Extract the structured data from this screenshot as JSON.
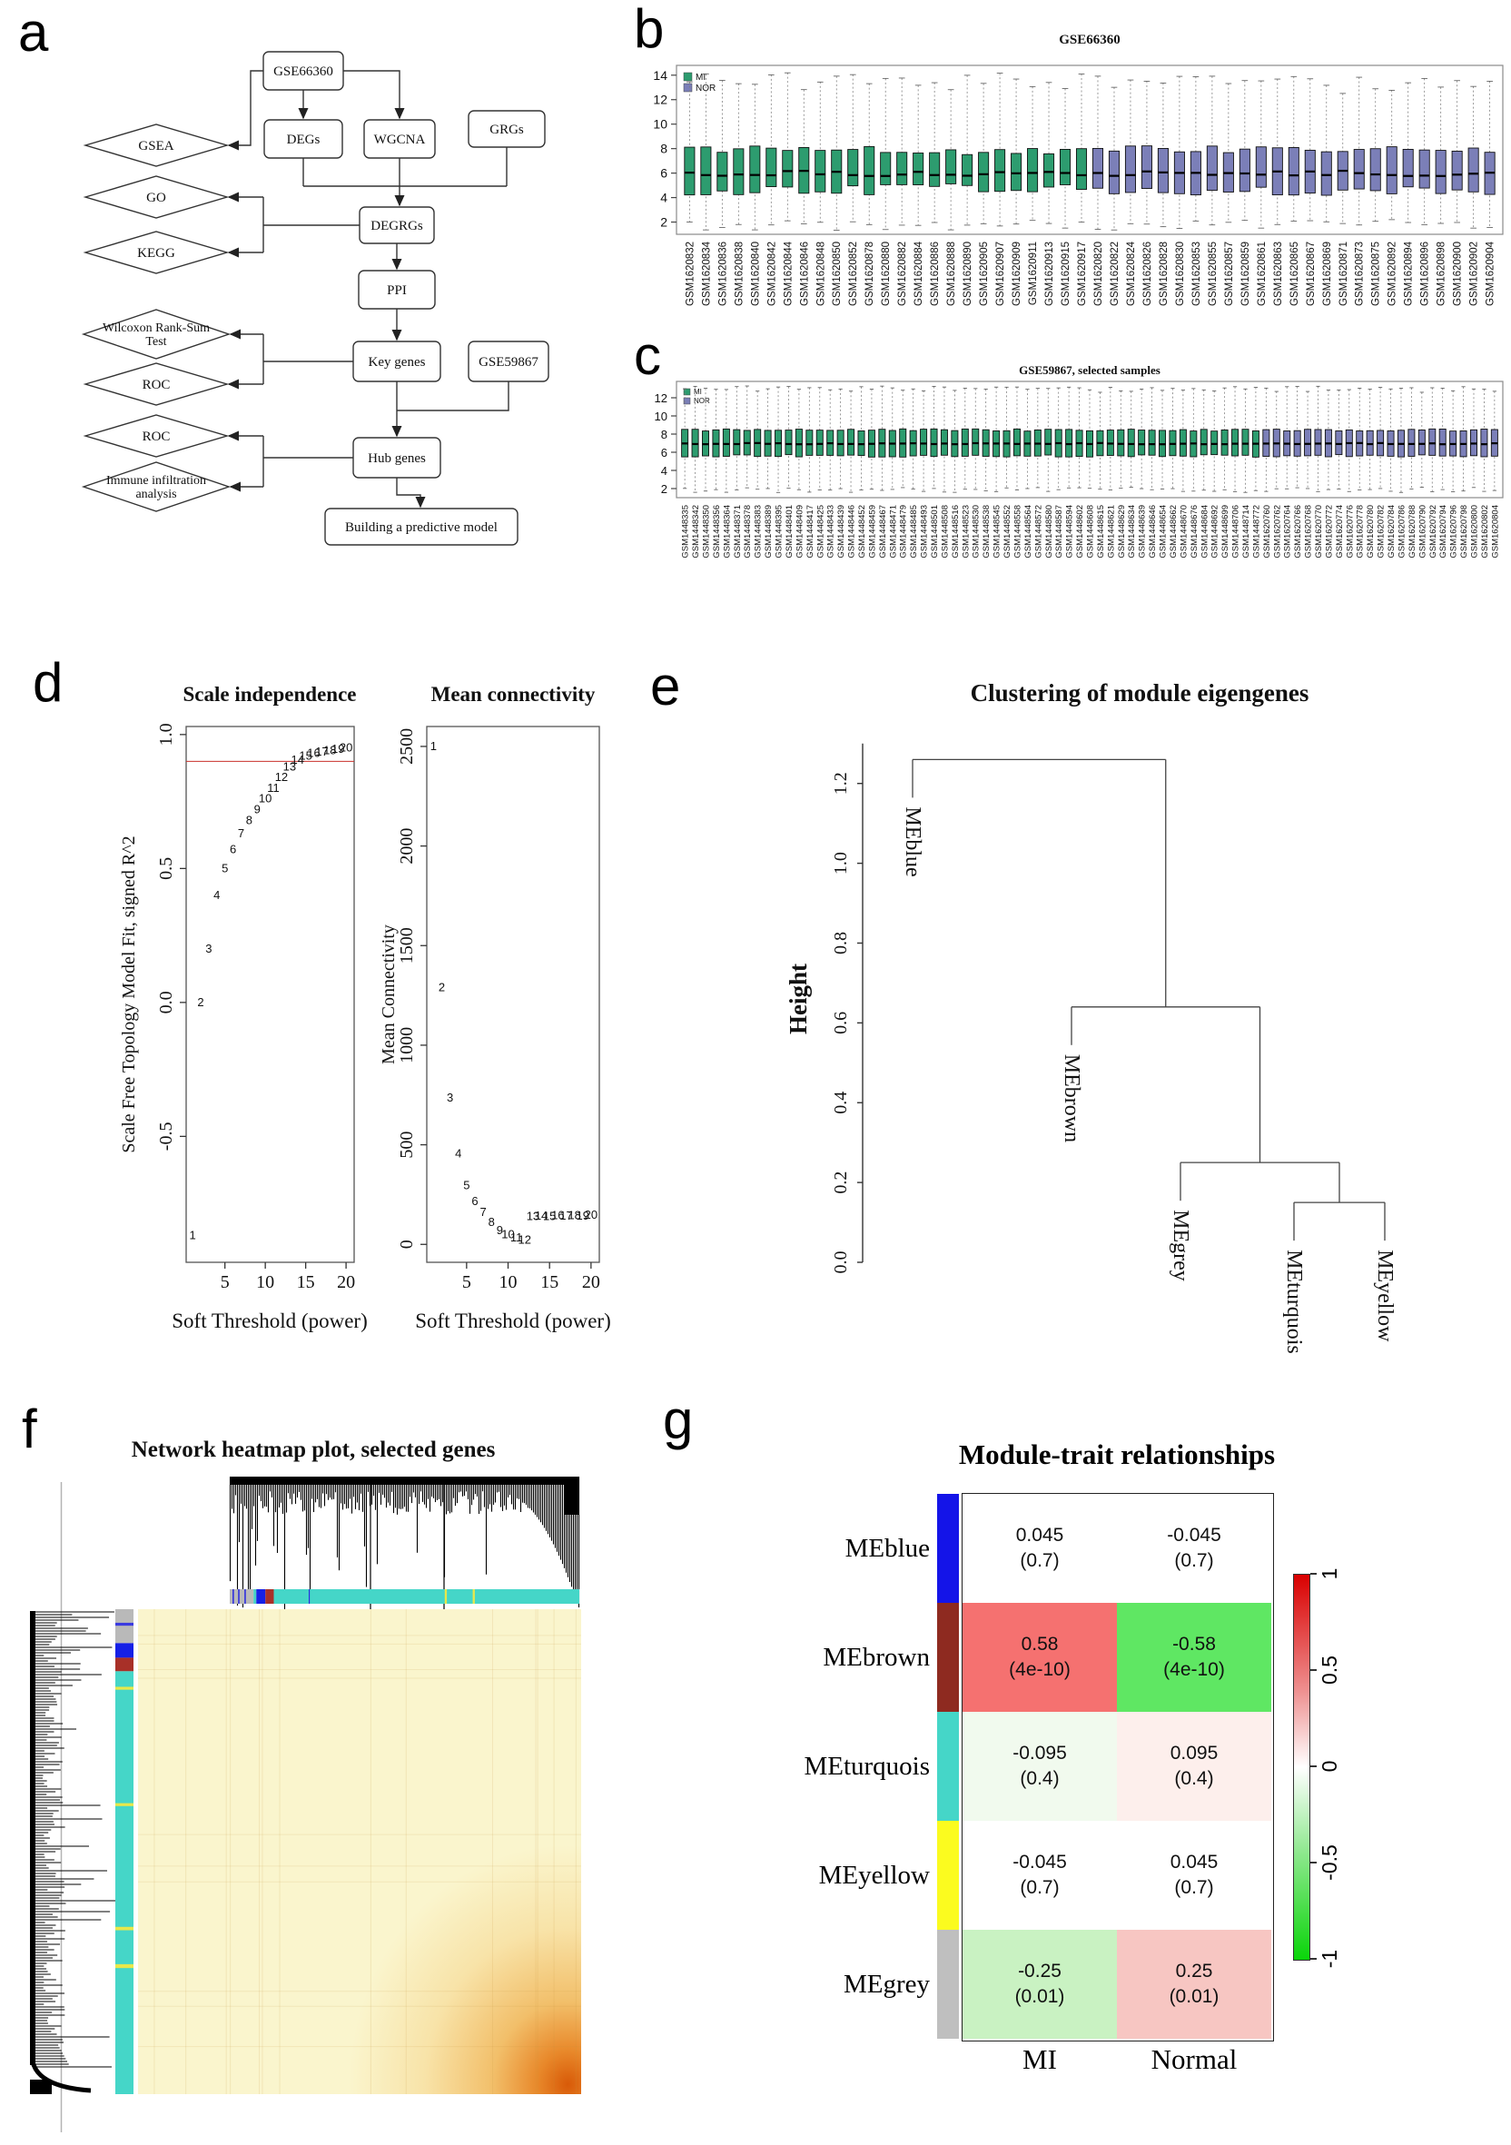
{
  "panel_labels": {
    "a": "a",
    "b": "b",
    "c": "c",
    "d": "d",
    "e": "e",
    "f": "f",
    "g": "g"
  },
  "flowchart": {
    "nodes": [
      {
        "id": "gse66360",
        "shape": "rect",
        "label": "GSE66360"
      },
      {
        "id": "degs",
        "shape": "rect",
        "label": "DEGs"
      },
      {
        "id": "wgcna",
        "shape": "rect",
        "label": "WGCNA"
      },
      {
        "id": "grgs",
        "shape": "rect",
        "label": "GRGs"
      },
      {
        "id": "degrgs",
        "shape": "rect",
        "label": "DEGRGs"
      },
      {
        "id": "ppi",
        "shape": "rect",
        "label": "PPI"
      },
      {
        "id": "keygenes",
        "shape": "rect",
        "label": "Key genes"
      },
      {
        "id": "gse59867",
        "shape": "rect",
        "label": "GSE59867"
      },
      {
        "id": "hubgenes",
        "shape": "rect",
        "label": "Hub genes"
      },
      {
        "id": "model",
        "shape": "rect",
        "label": "Building a predictive model"
      },
      {
        "id": "gsea",
        "shape": "diamond",
        "label": "GSEA"
      },
      {
        "id": "go",
        "shape": "diamond",
        "label": "GO"
      },
      {
        "id": "kegg",
        "shape": "diamond",
        "label": "KEGG"
      },
      {
        "id": "wilcoxon",
        "shape": "diamond",
        "lines": [
          "Wilcoxon Rank-Sum",
          "Test"
        ]
      },
      {
        "id": "roc1",
        "shape": "diamond",
        "label": "ROC"
      },
      {
        "id": "roc2",
        "shape": "diamond",
        "label": "ROC"
      },
      {
        "id": "immune",
        "shape": "diamond",
        "lines": [
          "Immune infiltration",
          "analysis"
        ]
      }
    ]
  },
  "chart_data": [
    {
      "id": "gse66360_box",
      "type": "box",
      "title": "GSE66360",
      "legend": [
        {
          "label": "MI",
          "color": "#2d9c6f"
        },
        {
          "label": "NOR",
          "color": "#7b7fb8"
        }
      ],
      "yticks": [
        2,
        4,
        6,
        8,
        10,
        12,
        14
      ],
      "ylim": [
        1,
        14.8
      ],
      "n_mi": 25,
      "box_template": {
        "median": [
          5.98,
          0.22
        ],
        "q1": [
          4.55,
          0.42
        ],
        "q3": [
          7.95,
          0.28
        ],
        "lo": [
          1.75,
          0.45
        ],
        "hi": [
          13.35,
          0.85
        ]
      },
      "samples": [
        "GSM1620832",
        "GSM1620834",
        "GSM1620836",
        "GSM1620838",
        "GSM1620840",
        "GSM1620842",
        "GSM1620844",
        "GSM1620846",
        "GSM1620848",
        "GSM1620850",
        "GSM1620852",
        "GSM1620878",
        "GSM1620880",
        "GSM1620882",
        "GSM1620884",
        "GSM1620886",
        "GSM1620888",
        "GSM1620890",
        "GSM1620905",
        "GSM1620907",
        "GSM1620909",
        "GSM1620911",
        "GSM1620913",
        "GSM1620915",
        "GSM1620917",
        "GSM1620820",
        "GSM1620822",
        "GSM1620824",
        "GSM1620826",
        "GSM1620828",
        "GSM1620830",
        "GSM1620853",
        "GSM1620855",
        "GSM1620857",
        "GSM1620859",
        "GSM1620861",
        "GSM1620863",
        "GSM1620865",
        "GSM1620867",
        "GSM1620869",
        "GSM1620871",
        "GSM1620873",
        "GSM1620875",
        "GSM1620892",
        "GSM1620894",
        "GSM1620896",
        "GSM1620898",
        "GSM1620900",
        "GSM1620902",
        "GSM1620904"
      ]
    },
    {
      "id": "gse59867_box",
      "type": "box",
      "title": "GSE59867, selected samples",
      "legend": [
        {
          "label": "MI",
          "color": "#2d9c6f"
        },
        {
          "label": "NOR",
          "color": "#7b7fb8"
        }
      ],
      "yticks": [
        2,
        4,
        6,
        8,
        10,
        12
      ],
      "ylim": [
        1,
        13.8
      ],
      "n_mi": 56,
      "box_template": {
        "median": [
          6.95,
          0.07
        ],
        "q1": [
          5.6,
          0.14
        ],
        "q3": [
          8.45,
          0.12
        ],
        "lo": [
          1.85,
          0.3
        ],
        "hi": [
          12.95,
          0.35
        ]
      },
      "samples": [
        "GSM1448335",
        "GSM1448342",
        "GSM1448350",
        "GSM1448356",
        "GSM1448364",
        "GSM1448371",
        "GSM1448378",
        "GSM1448383",
        "GSM1448389",
        "GSM1448395",
        "GSM1448401",
        "GSM1448409",
        "GSM1448417",
        "GSM1448425",
        "GSM1448433",
        "GSM1448439",
        "GSM1448446",
        "GSM1448452",
        "GSM1448459",
        "GSM1448467",
        "GSM1448471",
        "GSM1448479",
        "GSM1448485",
        "GSM1448493",
        "GSM1448501",
        "GSM1448508",
        "GSM1448516",
        "GSM1448523",
        "GSM1448530",
        "GSM1448538",
        "GSM1448545",
        "GSM1448552",
        "GSM1448558",
        "GSM1448564",
        "GSM1448572",
        "GSM1448580",
        "GSM1448587",
        "GSM1448594",
        "GSM1448602",
        "GSM1448608",
        "GSM1448615",
        "GSM1448621",
        "GSM1448629",
        "GSM1448634",
        "GSM1448639",
        "GSM1448646",
        "GSM1448654",
        "GSM1448662",
        "GSM1448670",
        "GSM1448676",
        "GSM1448684",
        "GSM1448692",
        "GSM1448699",
        "GSM1448706",
        "GSM1448714",
        "GSM1448772",
        "GSM1620760",
        "GSM1620762",
        "GSM1620764",
        "GSM1620766",
        "GSM1620768",
        "GSM1620770",
        "GSM1620772",
        "GSM1620774",
        "GSM1620776",
        "GSM1620778",
        "GSM1620780",
        "GSM1620782",
        "GSM1620784",
        "GSM1620786",
        "GSM1620788",
        "GSM1620790",
        "GSM1620792",
        "GSM1620794",
        "GSM1620796",
        "GSM1620798",
        "GSM1620800",
        "GSM1620802",
        "GSM1620804"
      ]
    },
    {
      "id": "scale_independence",
      "type": "scatter-text",
      "title": "Scale independence",
      "xlabel": "Soft Threshold (power)",
      "ylabel": "Scale Free Topology Model Fit, signed R^2",
      "xticks": [
        5,
        10,
        15,
        20
      ],
      "yticks": [
        {
          "v": -0.5,
          "l": "-0.5"
        },
        {
          "v": 0,
          "l": "0.0"
        },
        {
          "v": 0.5,
          "l": "0.5"
        },
        {
          "v": 1,
          "l": "1.0"
        }
      ],
      "powers": [
        1,
        2,
        3,
        4,
        5,
        6,
        7,
        8,
        9,
        10,
        11,
        12,
        13,
        14,
        15,
        16,
        17,
        18,
        19,
        20
      ],
      "values": [
        -0.87,
        0,
        0.2,
        0.4,
        0.5,
        0.57,
        0.63,
        0.68,
        0.72,
        0.76,
        0.8,
        0.84,
        0.88,
        0.905,
        0.92,
        0.93,
        0.935,
        0.94,
        0.945,
        0.95
      ],
      "hline": 0.9,
      "point_color": "#c9302c"
    },
    {
      "id": "mean_connectivity",
      "type": "scatter-text",
      "title": "Mean connectivity",
      "xlabel": "Soft Threshold (power)",
      "ylabel": "Mean Connectivity",
      "xticks": [
        5,
        10,
        15,
        20
      ],
      "yticks": [
        {
          "v": 0,
          "l": "0"
        },
        {
          "v": 500,
          "l": "500"
        },
        {
          "v": 1000,
          "l": "1000"
        },
        {
          "v": 1500,
          "l": "1500"
        },
        {
          "v": 2000,
          "l": "2000"
        },
        {
          "v": 2500,
          "l": "2500"
        }
      ],
      "powers": [
        1,
        2,
        3,
        4,
        5,
        6,
        7,
        8,
        9,
        10,
        11,
        12,
        13,
        14,
        15,
        16,
        17,
        18,
        19,
        20
      ],
      "values": [
        2500,
        1290,
        735,
        455,
        295,
        215,
        160,
        110,
        70,
        48,
        32,
        22,
        140,
        143,
        141,
        144,
        142,
        145,
        143,
        146
      ],
      "point_color": "#c9302c"
    },
    {
      "id": "module_dendrogram",
      "type": "dendrogram",
      "title": "Clustering of module eigengenes",
      "ylabel": "Height",
      "yticks": [
        {
          "v": 0,
          "l": "0.0"
        },
        {
          "v": 0.2,
          "l": "0.2"
        },
        {
          "v": 0.4,
          "l": "0.4"
        },
        {
          "v": 0.6,
          "l": "0.6"
        },
        {
          "v": 0.8,
          "l": "0.8"
        },
        {
          "v": 1,
          "l": "1.0"
        },
        {
          "v": 1.2,
          "l": "1.2"
        }
      ],
      "leaves": [
        "MEblue",
        "MEbrown",
        "MEgrey",
        "MEturquois",
        "MEyellow"
      ],
      "merge_heights": {
        "turquois_yellow": 0.15,
        "grey_join": 0.25,
        "brown_join": 0.64,
        "blue_join": 1.26
      }
    },
    {
      "id": "network_heatmap",
      "type": "heatmap-graphic",
      "title": "Network heatmap plot, selected genes",
      "heat_base": "#faf5cd",
      "heat_corner": "#d85a08",
      "top_strip_segments": [
        {
          "color": "#b9b9b9",
          "from": 0,
          "to": 0.068
        },
        {
          "color": "#2a2ae0",
          "from": 0.008,
          "to": 0.012
        },
        {
          "color": "#2a2ae0",
          "from": 0.024,
          "to": 0.028
        },
        {
          "color": "#2a2ae0",
          "from": 0.042,
          "to": 0.046
        },
        {
          "color": "#45d0c4",
          "from": 0.068,
          "to": 0.076
        },
        {
          "color": "#1520e6",
          "from": 0.076,
          "to": 0.102
        },
        {
          "color": "#a83028",
          "from": 0.102,
          "to": 0.126
        },
        {
          "color": "#45d6c8",
          "from": 0.126,
          "to": 1
        },
        {
          "color": "#2a2ae0",
          "from": 0.226,
          "to": 0.229
        },
        {
          "color": "#e8e84a",
          "from": 0.615,
          "to": 0.621
        },
        {
          "color": "#e8e84a",
          "from": 0.695,
          "to": 0.701
        }
      ],
      "left_strip_segments": [
        {
          "color": "#b9b9b9",
          "from": 0,
          "to": 0.07
        },
        {
          "color": "#3a3ae0",
          "from": 0.028,
          "to": 0.034
        },
        {
          "color": "#1520e6",
          "from": 0.07,
          "to": 0.1
        },
        {
          "color": "#a83028",
          "from": 0.1,
          "to": 0.128
        },
        {
          "color": "#45d6c8",
          "from": 0.128,
          "to": 1
        },
        {
          "color": "#e8e84a",
          "from": 0.16,
          "to": 0.166
        },
        {
          "color": "#e8e84a",
          "from": 0.4,
          "to": 0.406
        },
        {
          "color": "#e8e84a",
          "from": 0.655,
          "to": 0.662
        },
        {
          "color": "#e8e84a",
          "from": 0.732,
          "to": 0.74
        }
      ]
    },
    {
      "id": "module_trait",
      "type": "heatmap",
      "title": "Module-trait relationships",
      "columns": [
        "MI",
        "Normal"
      ],
      "rows": [
        {
          "module": "MEblue",
          "color": "#1414e8",
          "cells": [
            {
              "r": "0.045",
              "p": "(0.7)",
              "bg": "#ffffff"
            },
            {
              "r": "-0.045",
              "p": "(0.7)",
              "bg": "#ffffff"
            }
          ]
        },
        {
          "module": "MEbrown",
          "color": "#8e2a20",
          "cells": [
            {
              "r": "0.58",
              "p": "(4e-10)",
              "bg": "#f57170"
            },
            {
              "r": "-0.58",
              "p": "(4e-10)",
              "bg": "#5fe763"
            }
          ]
        },
        {
          "module": "MEturquois",
          "color": "#45d6c8",
          "cells": [
            {
              "r": "-0.095",
              "p": "(0.4)",
              "bg": "#f1faee"
            },
            {
              "r": "0.095",
              "p": "(0.4)",
              "bg": "#fdefec"
            }
          ]
        },
        {
          "module": "MEyellow",
          "color": "#fbfb1f",
          "cells": [
            {
              "r": "-0.045",
              "p": "(0.7)",
              "bg": "#ffffff"
            },
            {
              "r": "0.045",
              "p": "(0.7)",
              "bg": "#ffffff"
            }
          ]
        },
        {
          "module": "MEgrey",
          "color": "#bfbfbf",
          "cells": [
            {
              "r": "-0.25",
              "p": "(0.01)",
              "bg": "#c9f2c2"
            },
            {
              "r": "0.25",
              "p": "(0.01)",
              "bg": "#f7c6c2"
            }
          ]
        }
      ],
      "colorbar": {
        "ticks": [
          "1",
          "0.5",
          "0",
          "-0.5",
          "-1"
        ]
      }
    }
  ]
}
